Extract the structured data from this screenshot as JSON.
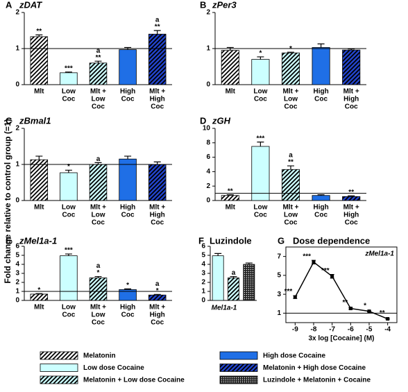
{
  "ylabel": "Fold change relative to control group (=1)",
  "legend": [
    {
      "label": "Melatonin",
      "color": "#ffffff",
      "pattern": "hatch"
    },
    {
      "label": "Low dose Cocaine",
      "color": "#ccffff",
      "pattern": "solid"
    },
    {
      "label": "Melatonin + Low dose Cocaine",
      "color": "#ccffff",
      "pattern": "hatch"
    },
    {
      "label": "High dose Cocaine",
      "color": "#1f6fe6",
      "pattern": "solid"
    },
    {
      "label": "Melatonin + High dose Cocaine",
      "color": "#2244cc",
      "pattern": "hatch"
    },
    {
      "label": "Luzindole + Melatonin + Cocaine",
      "color": "#222222",
      "pattern": "dots"
    }
  ],
  "chart_data": [
    {
      "type": "bar",
      "panel": "A",
      "title": "zDAT",
      "categories": [
        [
          "Mlt"
        ],
        [
          "Low",
          "Coc"
        ],
        [
          "Mlt +",
          "Low",
          "Coc"
        ],
        [
          "High",
          "Coc"
        ],
        [
          "Mlt +",
          "High",
          "Coc"
        ]
      ],
      "values": [
        1.33,
        0.33,
        0.6,
        0.97,
        1.4
      ],
      "errors": [
        0.05,
        0.02,
        0.05,
        0.06,
        0.1
      ],
      "annotations": [
        [
          "**"
        ],
        [
          "***"
        ],
        [
          "a",
          "**"
        ],
        [],
        [
          "a",
          "**"
        ]
      ],
      "colors": [
        "#ffffff",
        "#ccffff",
        "#ccffff",
        "#1f6fe6",
        "#2244cc"
      ],
      "patterns": [
        "hatch",
        "solid",
        "hatch",
        "solid",
        "hatch"
      ],
      "ylim": [
        0,
        2
      ],
      "yticks": [
        0,
        1,
        2
      ],
      "reference_line": 1
    },
    {
      "type": "bar",
      "panel": "B",
      "title": "zPer3",
      "categories": [
        [
          "Mlt"
        ],
        [
          "Low",
          "Coc"
        ],
        [
          "Mlt +",
          "Low",
          "Coc"
        ],
        [
          "High",
          "Coc"
        ],
        [
          "Mlt +",
          "High",
          "Coc"
        ]
      ],
      "values": [
        0.95,
        0.7,
        0.88,
        1.03,
        0.96
      ],
      "errors": [
        0.08,
        0.07,
        0.02,
        0.1,
        0.03
      ],
      "annotations": [
        [],
        [
          "*"
        ],
        [
          "*"
        ],
        [],
        []
      ],
      "colors": [
        "#ffffff",
        "#ccffff",
        "#ccffff",
        "#1f6fe6",
        "#2244cc"
      ],
      "patterns": [
        "hatch",
        "solid",
        "hatch",
        "solid",
        "hatch"
      ],
      "ylim": [
        0,
        2
      ],
      "yticks": [
        0,
        1,
        2
      ],
      "reference_line": 1
    },
    {
      "type": "bar",
      "panel": "C",
      "title": "zBmal1",
      "categories": [
        [
          "Mlt"
        ],
        [
          "Low",
          "Coc"
        ],
        [
          "Mlt +",
          "Low",
          "Coc"
        ],
        [
          "High",
          "Coc"
        ],
        [
          "Mlt +",
          "High",
          "Coc"
        ]
      ],
      "values": [
        1.13,
        0.77,
        1.0,
        1.15,
        1.0
      ],
      "errors": [
        0.1,
        0.07,
        0.05,
        0.08,
        0.07
      ],
      "annotations": [
        [],
        [
          "*"
        ],
        [
          "a"
        ],
        [],
        []
      ],
      "colors": [
        "#ffffff",
        "#ccffff",
        "#ccffff",
        "#1f6fe6",
        "#2244cc"
      ],
      "patterns": [
        "hatch",
        "solid",
        "hatch",
        "solid",
        "hatch"
      ],
      "ylim": [
        0,
        2
      ],
      "yticks": [
        0,
        1,
        2
      ],
      "reference_line": 1
    },
    {
      "type": "bar",
      "panel": "D",
      "title": "zGH",
      "categories": [
        [
          "Mlt"
        ],
        [
          "Low",
          "Coc"
        ],
        [
          "Mlt +",
          "Low",
          "Coc"
        ],
        [
          "High",
          "Coc"
        ],
        [
          "Mlt +",
          "High",
          "Coc"
        ]
      ],
      "values": [
        0.7,
        7.5,
        4.3,
        0.7,
        0.55
      ],
      "errors": [
        0.1,
        0.6,
        0.5,
        0.1,
        0.1
      ],
      "annotations": [
        [
          "**"
        ],
        [
          "***"
        ],
        [
          "a",
          "**"
        ],
        [],
        [
          "**"
        ]
      ],
      "colors": [
        "#ffffff",
        "#ccffff",
        "#ccffff",
        "#1f6fe6",
        "#2244cc"
      ],
      "patterns": [
        "hatch",
        "solid",
        "hatch",
        "solid",
        "hatch"
      ],
      "ylim": [
        0,
        10
      ],
      "yticks": [
        0,
        2,
        4,
        6,
        8,
        10
      ],
      "reference_line": 1
    },
    {
      "type": "bar",
      "panel": "E",
      "title": "zMel1a-1",
      "categories": [
        [
          "Mlt"
        ],
        [
          "Low",
          "Coc"
        ],
        [
          "Mlt +",
          "Low",
          "Coc"
        ],
        [
          "High",
          "Coc"
        ],
        [
          "Mlt +",
          "High",
          "Coc"
        ]
      ],
      "values": [
        0.7,
        4.95,
        2.5,
        1.2,
        0.6
      ],
      "errors": [
        0.05,
        0.2,
        0.15,
        0.08,
        0.07
      ],
      "annotations": [
        [
          "*"
        ],
        [
          "***"
        ],
        [
          "a",
          "*"
        ],
        [
          "*"
        ],
        [
          "a",
          "*"
        ]
      ],
      "colors": [
        "#ffffff",
        "#ccffff",
        "#ccffff",
        "#1f6fe6",
        "#2244cc"
      ],
      "patterns": [
        "hatch",
        "solid",
        "hatch",
        "solid",
        "hatch"
      ],
      "ylim": [
        0,
        6
      ],
      "yticks": [
        0,
        1,
        2,
        3,
        4,
        5,
        6
      ],
      "reference_line": 1
    },
    {
      "type": "bar",
      "panel": "F",
      "title": "Luzindole",
      "xlabel": "Mel1a-1",
      "values": [
        4.95,
        2.5,
        4.0
      ],
      "errors": [
        0.25,
        0.15,
        0.15
      ],
      "annotations": [
        [],
        [
          "a"
        ],
        []
      ],
      "colors": [
        "#ccffff",
        "#ccffff",
        "#222222"
      ],
      "patterns": [
        "solid",
        "hatch",
        "dots"
      ],
      "ylim": [
        0,
        6
      ],
      "yticks": [
        0,
        1,
        2,
        3,
        4,
        5,
        6
      ]
    },
    {
      "type": "line",
      "panel": "G",
      "title": "Dose dependence",
      "label": "zMel1a-1",
      "x": [
        -9,
        -8,
        -7,
        -6,
        -5,
        -4
      ],
      "values": [
        2.7,
        6.4,
        4.9,
        1.5,
        1.2,
        0.4
      ],
      "errors": [
        0.15,
        0.2,
        0.2,
        0.1,
        0.05,
        0.05
      ],
      "annotations": [
        "***",
        "***",
        "***",
        "**",
        "*",
        "**"
      ],
      "xlim": [
        -9.5,
        -3.5
      ],
      "xticks": [
        -9,
        -8,
        -7,
        -6,
        -5,
        -4
      ],
      "xlabel": "3x log [Cocaine] (M)",
      "ylim": [
        0,
        8
      ],
      "yticks": [
        1,
        3,
        5,
        7
      ],
      "reference_line": 1,
      "color": "#000000"
    }
  ]
}
